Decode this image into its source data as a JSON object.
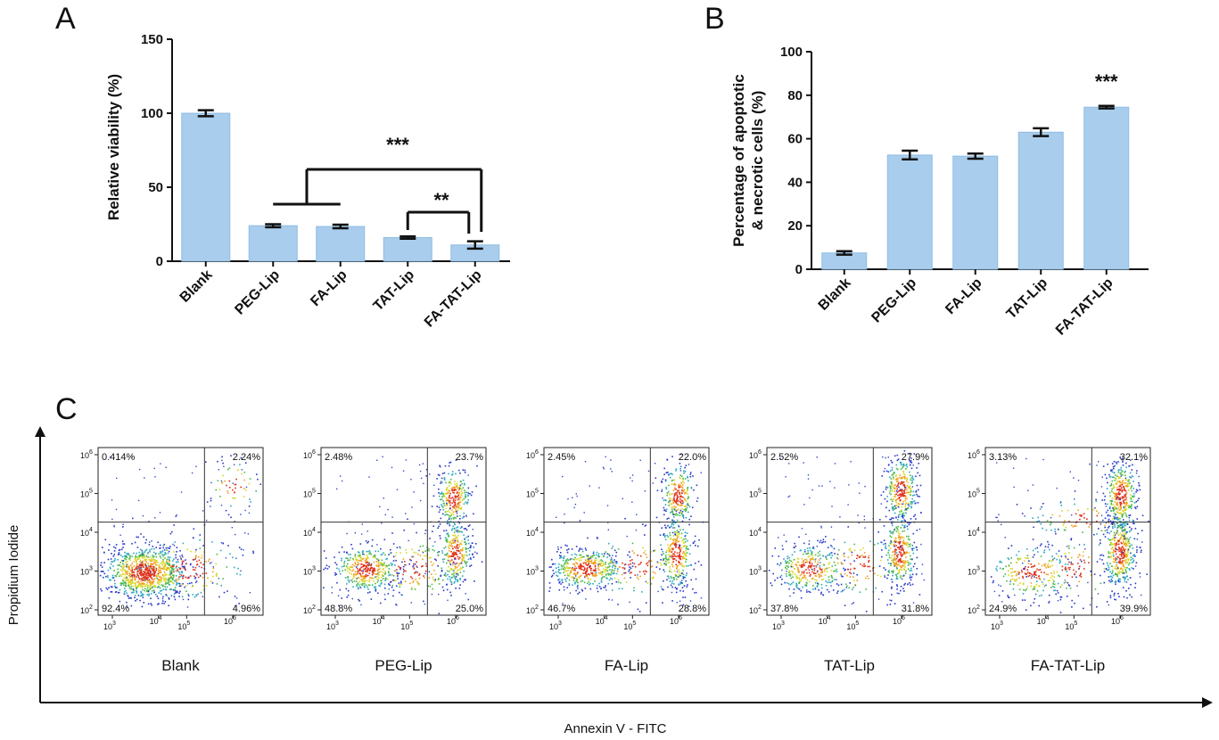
{
  "colors": {
    "bar": "#a9cdec",
    "bar_edge": "#8fbde3",
    "axis": "#111111"
  },
  "chart_data": [
    {
      "type": "bar",
      "panel": "A",
      "title": "",
      "xlabel": "",
      "ylabel": "Relative viability (%)",
      "ylim": [
        0,
        150
      ],
      "yticks": [
        "0",
        "50",
        "100",
        "150"
      ],
      "categories": [
        "Blank",
        "PEG-Lip",
        "FA-Lip",
        "TAT-Lip",
        "FA-TAT-Lip"
      ],
      "values": [
        100,
        24,
        23.5,
        16,
        11
      ],
      "errors": [
        2,
        1,
        1.2,
        0.8,
        2.5
      ],
      "annotations": [
        {
          "text": "***",
          "compare": "PEG-Lip & FA-Lip vs FA-TAT-Lip"
        },
        {
          "text": "**",
          "compare": "TAT-Lip vs FA-TAT-Lip"
        }
      ]
    },
    {
      "type": "bar",
      "panel": "B",
      "title": "",
      "xlabel": "",
      "ylabel_line1": "Percentage of apoptotic",
      "ylabel_line2": "& necrotic cells (%)",
      "ylim": [
        0,
        100
      ],
      "yticks": [
        "0",
        "20",
        "40",
        "60",
        "80",
        "100"
      ],
      "categories": [
        "Blank",
        "PEG-Lip",
        "FA-Lip",
        "TAT-Lip",
        "FA-TAT-Lip"
      ],
      "values": [
        7.5,
        52.5,
        52,
        63,
        74.5
      ],
      "errors": [
        0.8,
        2,
        1.2,
        1.8,
        0.6
      ],
      "annotations": [
        {
          "text": "***",
          "compare": "FA-TAT-Lip"
        }
      ]
    },
    {
      "type": "scatter",
      "panel": "C",
      "description_kind": "flow-cytometry density plots",
      "xlabel": "Annexin V - FITC",
      "ylabel": "Propidium Iodide",
      "x_ticks": [
        "3",
        "4",
        "5",
        "6"
      ],
      "y_ticks": [
        "2",
        "3",
        "4",
        "5",
        "6"
      ],
      "tick_base": "10",
      "plots": [
        {
          "name": "Blank",
          "q_ul": "0.414%",
          "q_ur": "2.24%",
          "q_ll": "92.4%",
          "q_lr": "4.96%"
        },
        {
          "name": "PEG-Lip",
          "q_ul": "2.48%",
          "q_ur": "23.7%",
          "q_ll": "48.8%",
          "q_lr": "25.0%"
        },
        {
          "name": "FA-Lip",
          "q_ul": "2.45%",
          "q_ur": "22.0%",
          "q_ll": "46.7%",
          "q_lr": "28.8%"
        },
        {
          "name": "TAT-Lip",
          "q_ul": "2.52%",
          "q_ur": "27.9%",
          "q_ll": "37.8%",
          "q_lr": "31.8%"
        },
        {
          "name": "FA-TAT-Lip",
          "q_ul": "3.13%",
          "q_ur": "32.1%",
          "q_ll": "24.9%",
          "q_lr": "39.9%"
        }
      ]
    }
  ],
  "panels": {
    "a": "A",
    "b": "B",
    "c": "C"
  }
}
